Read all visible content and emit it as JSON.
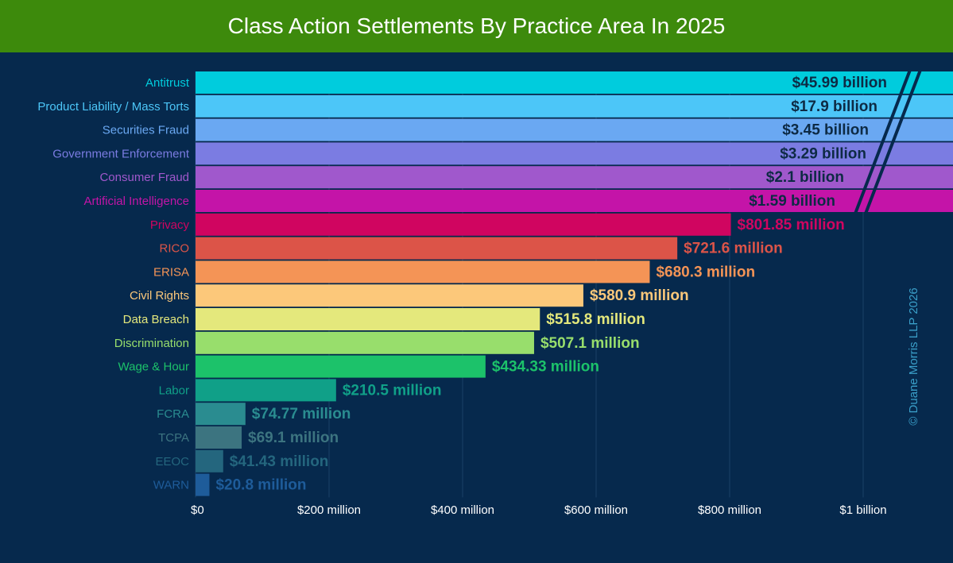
{
  "chart_data": {
    "type": "bar",
    "orientation": "horizontal",
    "title": "Class Action Settlements By Practice Area In 2025",
    "xlabel": "",
    "ylabel": "",
    "xlim": [
      0,
      1100
    ],
    "units": "million USD",
    "axis_break": "values above about $1 billion are truncated at the right edge (broken bars)",
    "x_ticks": [
      {
        "value": 0,
        "label": "$0"
      },
      {
        "value": 200,
        "label": "$200 million"
      },
      {
        "value": 400,
        "label": "$400 million"
      },
      {
        "value": 600,
        "label": "$600 million"
      },
      {
        "value": 800,
        "label": "$800 million"
      },
      {
        "value": 1000,
        "label": "$1 billion"
      }
    ],
    "categories": [
      "Antitrust",
      "Product Liability / Mass Torts",
      "Securities Fraud",
      "Government Enforcement",
      "Consumer Fraud",
      "Artificial Intelligence",
      "Privacy",
      "RICO",
      "ERISA",
      "Civil Rights",
      "Data Breach",
      "Discrimination",
      "Wage & Hour",
      "Labor",
      "FCRA",
      "TCPA",
      "EEOC",
      "WARN"
    ],
    "values": [
      45990,
      17900,
      3450,
      3290,
      2100,
      1590,
      801.85,
      721.6,
      680.3,
      580.9,
      515.8,
      507.1,
      434.33,
      210.5,
      74.77,
      69.1,
      41.43,
      20.8
    ],
    "data_labels": [
      "$45.99 billion",
      "$17.9 billion",
      "$3.45 billion",
      "$3.29 billion",
      "$2.1 billion",
      "$1.59 billion",
      "$801.85 million",
      "$721.6 million",
      "$680.3 million",
      "$580.9 million",
      "$515.8 million",
      "$507.1 million",
      "$434.33 million",
      "$210.5 million",
      "$74.77 million",
      "$69.1 million",
      "$41.43 million",
      "$20.8 million"
    ],
    "colors": [
      "#00ccdd",
      "#4cc6f8",
      "#6aa8f2",
      "#7b7ce2",
      "#a058cc",
      "#c414a8",
      "#d00560",
      "#dc5448",
      "#f49456",
      "#fcc87a",
      "#e4e87c",
      "#98de6c",
      "#1cc26a",
      "#10a088",
      "#2a8c90",
      "#3c7480",
      "#24667e",
      "#1e5c9a"
    ],
    "grid": true,
    "legend": "none"
  },
  "watermark": "© Duane Morris LLP 2026"
}
